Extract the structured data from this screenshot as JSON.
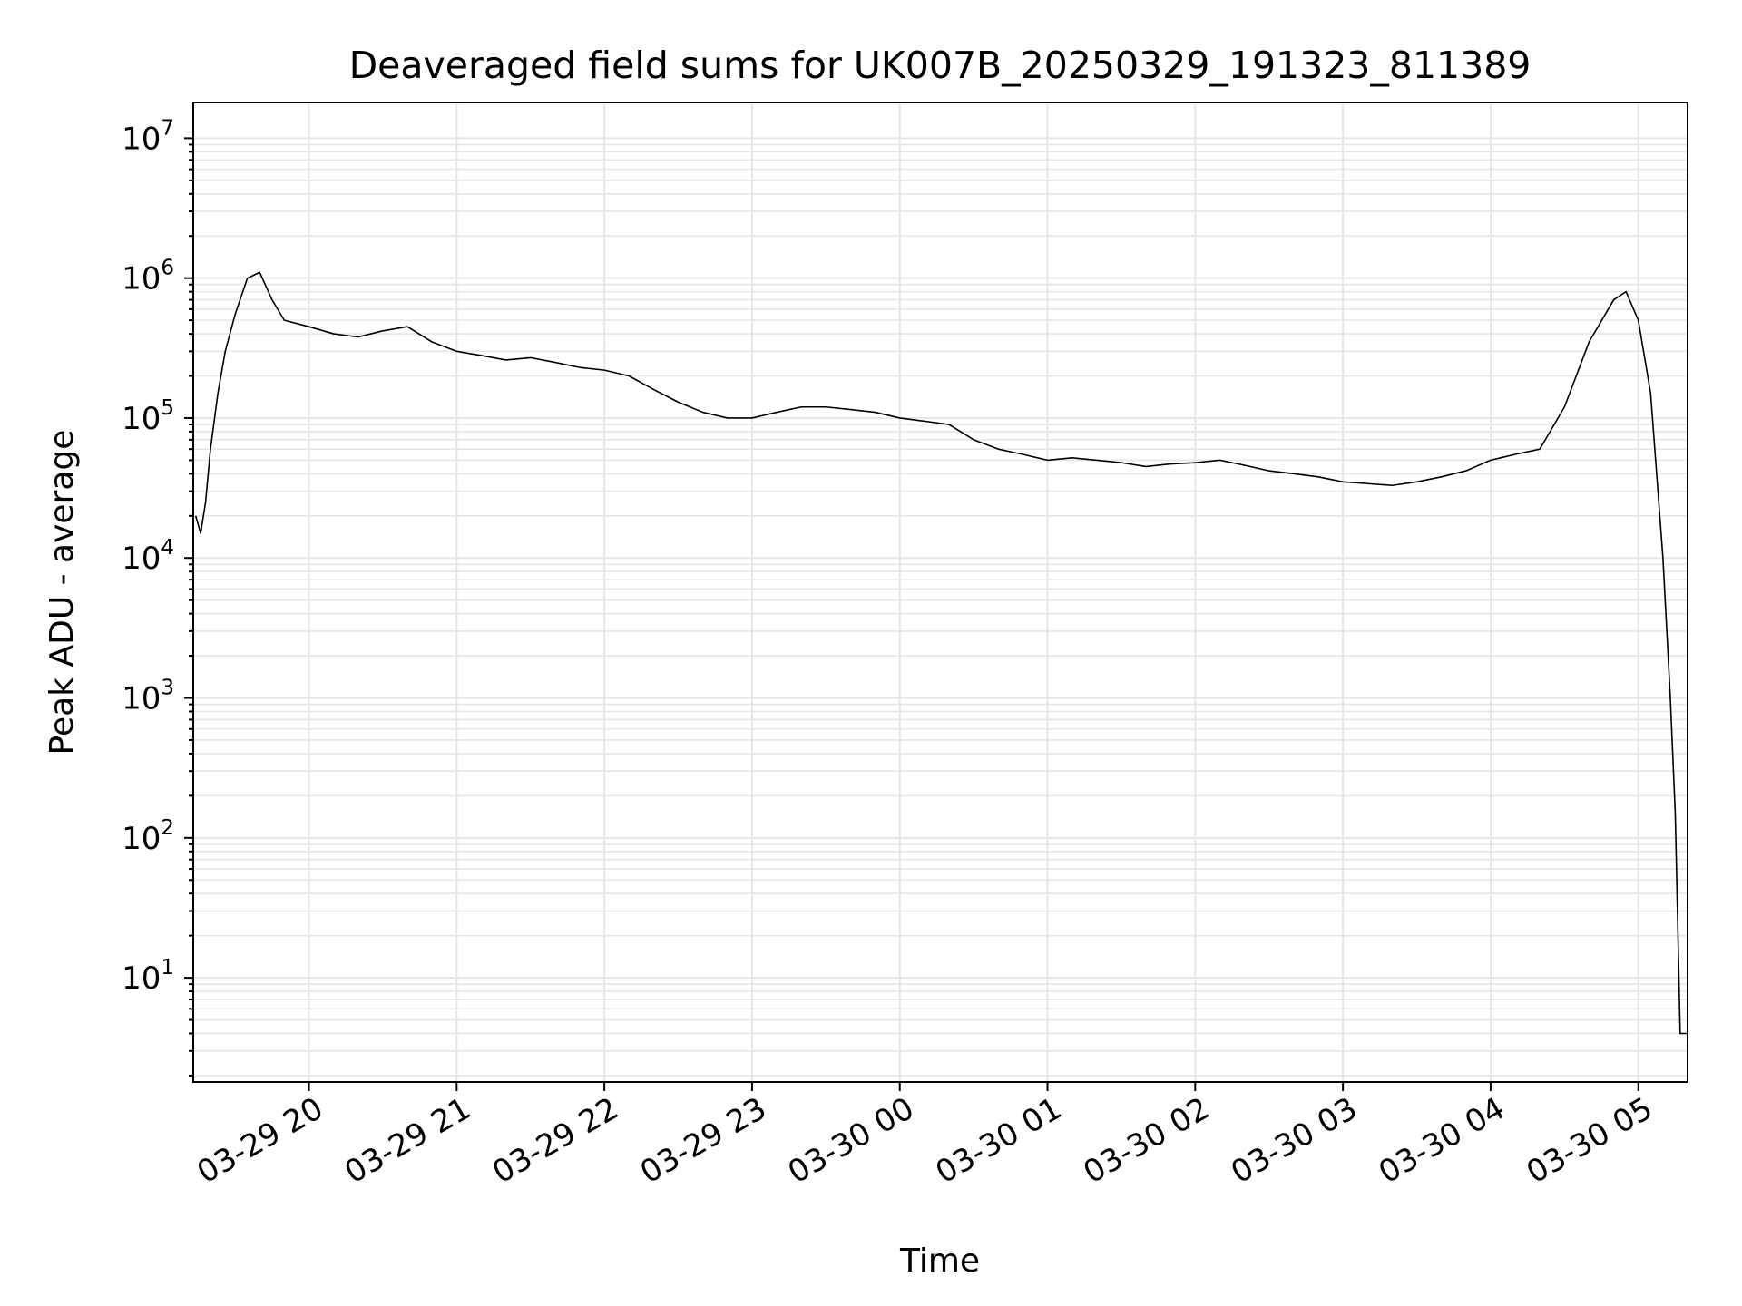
{
  "chart_data": {
    "type": "line",
    "title": "Deaveraged field sums for UK007B_20250329_191323_811389",
    "xlabel": "Time",
    "ylabel": "Peak ADU - average",
    "yscale": "log",
    "ylim": [
      1.8,
      18000000
    ],
    "xlim": [
      "03-29 19:13",
      "03-30 05:20"
    ],
    "grid": true,
    "line_color": "#000000",
    "x_ticks": [
      "03-29 20",
      "03-29 21",
      "03-29 22",
      "03-29 23",
      "03-30 00",
      "03-30 01",
      "03-30 02",
      "03-30 03",
      "03-30 04",
      "03-30 05"
    ],
    "y_ticks": [
      {
        "base": "10",
        "exp": "1",
        "value": 10
      },
      {
        "base": "10",
        "exp": "2",
        "value": 100
      },
      {
        "base": "10",
        "exp": "3",
        "value": 1000
      },
      {
        "base": "10",
        "exp": "4",
        "value": 10000
      },
      {
        "base": "10",
        "exp": "5",
        "value": 100000
      },
      {
        "base": "10",
        "exp": "6",
        "value": 1000000
      },
      {
        "base": "10",
        "exp": "7",
        "value": 10000000
      }
    ],
    "series": [
      {
        "x": [
          "03-29 19:14",
          "03-29 19:16",
          "03-29 19:18",
          "03-29 19:20",
          "03-29 19:23",
          "03-29 19:26",
          "03-29 19:30",
          "03-29 19:35",
          "03-29 19:40",
          "03-29 19:45",
          "03-29 19:50",
          "03-29 20:00",
          "03-29 20:10",
          "03-29 20:20",
          "03-29 20:30",
          "03-29 20:40",
          "03-29 20:50",
          "03-29 21:00",
          "03-29 21:10",
          "03-29 21:20",
          "03-29 21:30",
          "03-29 21:40",
          "03-29 21:50",
          "03-29 22:00",
          "03-29 22:10",
          "03-29 22:20",
          "03-29 22:30",
          "03-29 22:40",
          "03-29 22:50",
          "03-29 23:00",
          "03-29 23:10",
          "03-29 23:20",
          "03-29 23:30",
          "03-29 23:40",
          "03-29 23:50",
          "03-30 00:00",
          "03-30 00:10",
          "03-30 00:20",
          "03-30 00:30",
          "03-30 00:40",
          "03-30 00:50",
          "03-30 01:00",
          "03-30 01:10",
          "03-30 01:20",
          "03-30 01:30",
          "03-30 01:40",
          "03-30 01:50",
          "03-30 02:00",
          "03-30 02:10",
          "03-30 02:20",
          "03-30 02:30",
          "03-30 02:40",
          "03-30 02:50",
          "03-30 03:00",
          "03-30 03:10",
          "03-30 03:20",
          "03-30 03:30",
          "03-30 03:40",
          "03-30 03:50",
          "03-30 04:00",
          "03-30 04:10",
          "03-30 04:20",
          "03-30 04:30",
          "03-30 04:40",
          "03-30 04:50",
          "03-30 04:55",
          "03-30 05:00",
          "03-30 05:05",
          "03-30 05:10",
          "03-30 05:13",
          "03-30 05:15",
          "03-30 05:17",
          "03-30 05:20"
        ],
        "y": [
          20000,
          15000,
          25000,
          60000,
          150000,
          300000,
          550000,
          1000000,
          1100000,
          700000,
          500000,
          450000,
          400000,
          380000,
          420000,
          450000,
          350000,
          300000,
          280000,
          260000,
          270000,
          250000,
          230000,
          220000,
          200000,
          160000,
          130000,
          110000,
          100000,
          100000,
          110000,
          120000,
          120000,
          115000,
          110000,
          100000,
          95000,
          90000,
          70000,
          60000,
          55000,
          50000,
          52000,
          50000,
          48000,
          45000,
          47000,
          48000,
          50000,
          46000,
          42000,
          40000,
          38000,
          35000,
          34000,
          33000,
          35000,
          38000,
          42000,
          50000,
          55000,
          60000,
          120000,
          350000,
          700000,
          800000,
          500000,
          150000,
          10000,
          1000,
          150,
          4,
          4
        ]
      }
    ]
  }
}
